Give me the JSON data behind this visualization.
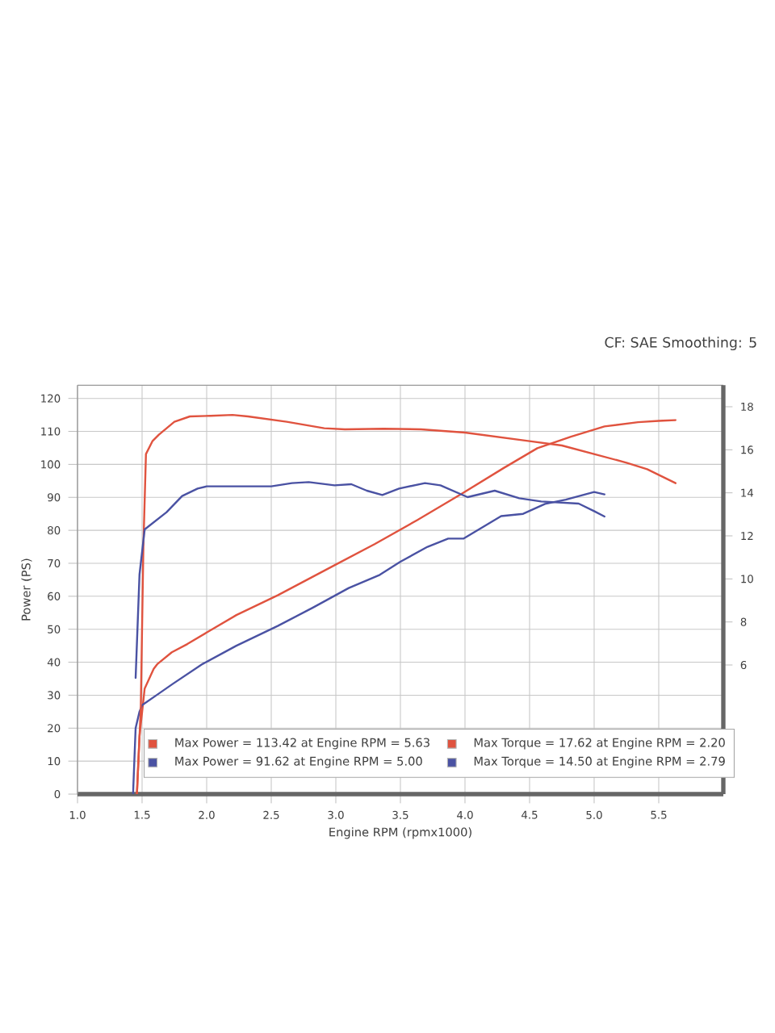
{
  "chart_data": {
    "type": "line",
    "xlabel": "Engine RPM (rpmx1000)",
    "ylabel": "Power (PS)",
    "annotations": [
      "CF: SAE Smoothing: 5"
    ],
    "xlim": [
      1.0,
      6.0
    ],
    "xticks": [
      {
        "value": 1.0,
        "label": "1.0"
      },
      {
        "value": 1.5,
        "label": "1.5"
      },
      {
        "value": 2.0,
        "label": "2.0"
      },
      {
        "value": 2.5,
        "label": "2.5"
      },
      {
        "value": 3.0,
        "label": "3.0"
      },
      {
        "value": 3.5,
        "label": "3.5"
      },
      {
        "value": 4.0,
        "label": "4.0"
      },
      {
        "value": 4.5,
        "label": "4.5"
      },
      {
        "value": 5.0,
        "label": "5.0"
      },
      {
        "value": 5.5,
        "label": "5.5"
      }
    ],
    "ylim": [
      0,
      124
    ],
    "yticks": [
      0,
      10,
      20,
      30,
      40,
      50,
      60,
      70,
      80,
      90,
      100,
      110,
      120
    ],
    "y2lim": [
      0,
      19
    ],
    "y2ticks": [
      6,
      8,
      10,
      12,
      14,
      16,
      18
    ],
    "grid": true,
    "legend": "bottom",
    "series": [
      {
        "name": "Max Power = 113.42 at Engine RPM = 5.63",
        "color": "#e0533f",
        "x": [
          1.46,
          1.48,
          1.52,
          1.59,
          1.62,
          1.73,
          1.85,
          2.0,
          2.23,
          2.55,
          2.99,
          3.3,
          3.63,
          3.97,
          4.3,
          4.56,
          4.82,
          5.08,
          5.34,
          5.5,
          5.63
        ],
        "values": [
          0,
          17.6,
          32,
          38,
          39.5,
          43,
          45.5,
          49,
          54.3,
          60.3,
          69.4,
          75.8,
          83.1,
          91,
          98.9,
          104.9,
          108.4,
          111.5,
          112.8,
          113.2,
          113.42
        ]
      },
      {
        "name": "Max Power = 91.62 at Engine RPM = 5.00",
        "color": "#4a52a3",
        "x": [
          1.43,
          1.45,
          1.48,
          1.5,
          1.63,
          1.74,
          1.97,
          2.23,
          2.55,
          2.82,
          3.1,
          3.34,
          3.5,
          3.71,
          3.87,
          3.99,
          4.16,
          4.28,
          4.45,
          4.62,
          4.78,
          5.0,
          5.08
        ],
        "values": [
          0,
          20,
          25,
          27,
          30.5,
          33.5,
          39.5,
          45,
          51,
          56.5,
          62.5,
          66.5,
          70.5,
          75,
          77.5,
          77.5,
          81.5,
          84.3,
          85,
          88,
          89.3,
          91.62,
          90.9
        ]
      },
      {
        "name": "Max Torque = 17.62 at Engine RPM = 2.20",
        "color": "#e0533f",
        "axis": "y2",
        "x": [
          1.46,
          1.49,
          1.51,
          1.53,
          1.58,
          1.63,
          1.66,
          1.75,
          1.87,
          2.03,
          2.2,
          2.32,
          2.62,
          2.91,
          3.07,
          3.37,
          3.66,
          4.0,
          4.25,
          4.5,
          4.75,
          5.0,
          5.25,
          5.41,
          5.63
        ],
        "values": [
          0,
          4.0,
          11.5,
          15.8,
          16.4,
          16.7,
          16.85,
          17.3,
          17.55,
          17.58,
          17.62,
          17.55,
          17.3,
          17.0,
          16.95,
          16.98,
          16.95,
          16.8,
          16.6,
          16.4,
          16.2,
          15.8,
          15.4,
          15.1,
          14.45
        ]
      },
      {
        "name": "Max Torque = 14.50 at Engine RPM = 2.79",
        "color": "#4a52a3",
        "axis": "y2",
        "x": [
          1.45,
          1.48,
          1.52,
          1.69,
          1.81,
          1.93,
          2.0,
          2.21,
          2.5,
          2.66,
          2.79,
          2.99,
          3.12,
          3.24,
          3.36,
          3.49,
          3.69,
          3.81,
          4.02,
          4.23,
          4.42,
          4.59,
          4.88,
          5.0,
          5.08
        ],
        "values": [
          5.4,
          10.2,
          12.3,
          13.1,
          13.85,
          14.2,
          14.3,
          14.3,
          14.3,
          14.45,
          14.5,
          14.35,
          14.4,
          14.1,
          13.9,
          14.2,
          14.45,
          14.35,
          13.8,
          14.1,
          13.75,
          13.6,
          13.5,
          13.15,
          12.9
        ]
      }
    ]
  }
}
